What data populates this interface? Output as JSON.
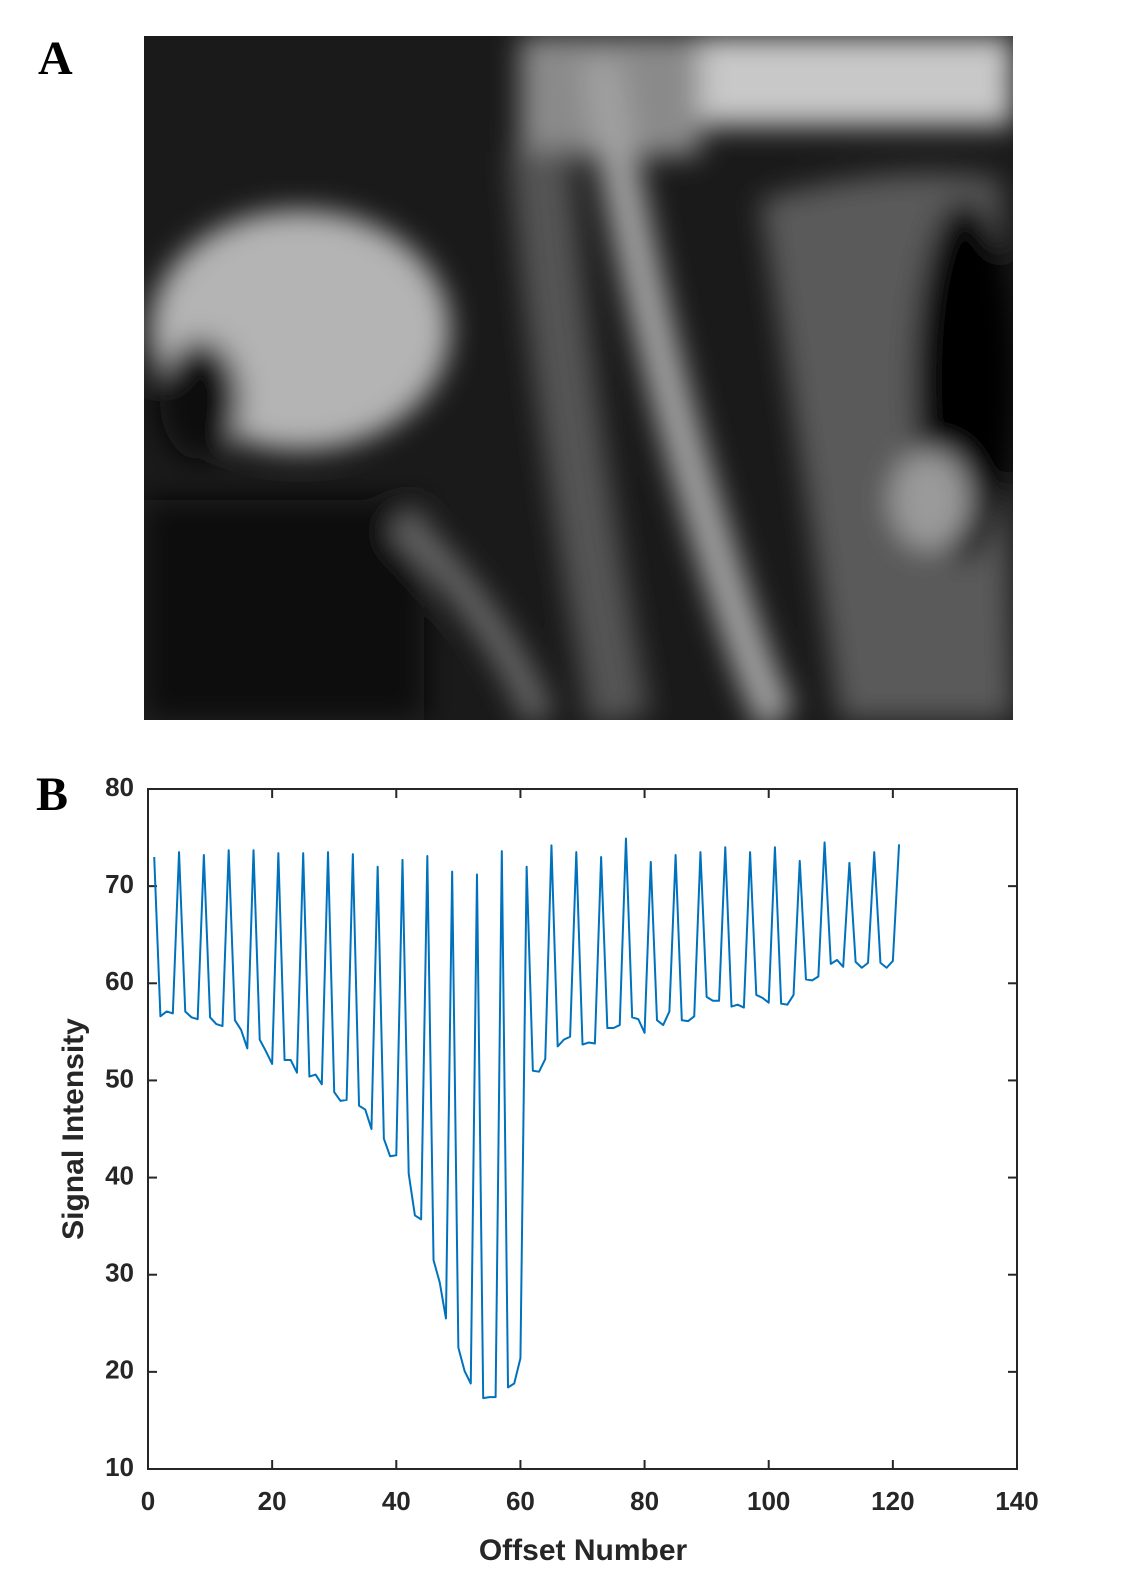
{
  "panel_a": {
    "label": "A"
  },
  "chart_data": {
    "type": "line",
    "panel_label": "B",
    "xlabel": "Offset Number",
    "ylabel": "Signal Intensity",
    "x": [
      1,
      2,
      3,
      4,
      5,
      6,
      7,
      8,
      9,
      10,
      11,
      12,
      13,
      14,
      15,
      16,
      17,
      18,
      19,
      20,
      21,
      22,
      23,
      24,
      25,
      26,
      27,
      28,
      29,
      30,
      31,
      32,
      33,
      34,
      35,
      36,
      37,
      38,
      39,
      40,
      41,
      42,
      43,
      44,
      45,
      46,
      47,
      48,
      49,
      50,
      51,
      52,
      53,
      54,
      55,
      56,
      57,
      58,
      59,
      60,
      61,
      62,
      63,
      64,
      65,
      66,
      67,
      68,
      69,
      70,
      71,
      72,
      73,
      74,
      75,
      76,
      77,
      78,
      79,
      80,
      81,
      82,
      83,
      84,
      85,
      86,
      87,
      88,
      89,
      90,
      91,
      92,
      93,
      94,
      95,
      96,
      97,
      98,
      99,
      100,
      101,
      102,
      103,
      104,
      105,
      106,
      107,
      108,
      109,
      110,
      111,
      112,
      113,
      114,
      115,
      116,
      117,
      118,
      119,
      120,
      121
    ],
    "values": [
      73,
      56.6,
      57.1,
      56.9,
      73.5,
      57.1,
      56.5,
      56.3,
      73.2,
      56.5,
      55.8,
      55.6,
      73.7,
      56.2,
      55.2,
      53.3,
      73.7,
      54.2,
      53,
      51.7,
      73.4,
      52.1,
      52.1,
      50.8,
      73.4,
      50.4,
      50.6,
      49.6,
      73.5,
      48.8,
      47.9,
      48,
      73.3,
      47.4,
      47,
      45,
      72,
      44,
      42.2,
      42.3,
      72.7,
      40.4,
      36.1,
      35.7,
      73.1,
      31.5,
      29.2,
      25.5,
      71.5,
      22.5,
      20.1,
      18.8,
      71.2,
      17.3,
      17.4,
      17.4,
      73.6,
      18.4,
      18.8,
      21.4,
      72,
      51,
      50.9,
      52.2,
      74.2,
      53.5,
      54.2,
      54.5,
      73.5,
      53.7,
      53.9,
      53.8,
      73,
      55.4,
      55.4,
      55.7,
      74.9,
      56.5,
      56.3,
      54.9,
      72.5,
      56.2,
      55.7,
      57.1,
      73.2,
      56.2,
      56.1,
      56.6,
      73.5,
      58.6,
      58.2,
      58.2,
      74,
      57.6,
      57.8,
      57.5,
      73.5,
      58.8,
      58.5,
      58,
      74,
      57.9,
      57.8,
      58.8,
      72.6,
      60.4,
      60.3,
      60.7,
      74.5,
      62,
      62.4,
      61.7,
      72.4,
      62.2,
      61.6,
      62.1,
      73.5,
      62.1,
      61.6,
      62.3,
      74.3
    ],
    "color": "#0072bd",
    "xlim": [
      0,
      140
    ],
    "xticks": [
      0,
      20,
      40,
      60,
      80,
      100,
      120,
      140
    ],
    "ylim": [
      10,
      80
    ],
    "yticks": [
      10,
      20,
      30,
      40,
      50,
      60,
      70,
      80
    ]
  }
}
